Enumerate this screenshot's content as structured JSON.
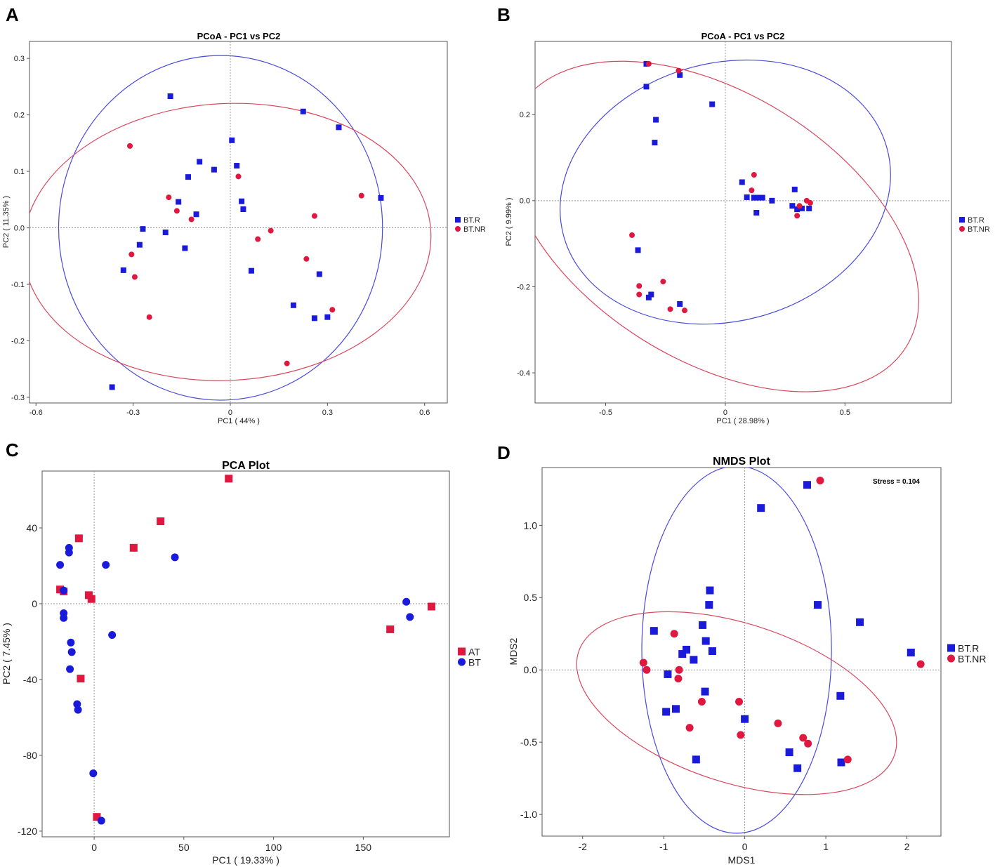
{
  "colors": {
    "blue": "#1a1adb",
    "red": "#e0173f",
    "ellipse_blue": "#4a4adf",
    "ellipse_red": "#d9485f"
  },
  "chart_data": [
    {
      "panel": "A",
      "type": "scatter",
      "title": "PCoA - PC1 vs PC2",
      "xlabel": "PC1 ( 44% )",
      "ylabel": "PC2 ( 11.35% )",
      "xlim": [
        -0.62,
        0.67
      ],
      "ylim": [
        -0.31,
        0.33
      ],
      "xticks": [
        -0.6,
        -0.3,
        0,
        0.3,
        0.6
      ],
      "xtick_labels": [
        "-0.6",
        "-0.3",
        "0",
        "0.3",
        "0.6"
      ],
      "yticks": [
        -0.3,
        -0.2,
        -0.1,
        0,
        0.1,
        0.2,
        0.3
      ],
      "ytick_labels": [
        "-0.3",
        "-0.2",
        "-0.1",
        "0.0",
        "0.1",
        "0.2",
        "0.3"
      ],
      "legend_position": "right",
      "series": [
        {
          "name": "BT.R",
          "marker": "square",
          "color": "blue",
          "points": [
            [
              -0.185,
              0.233
            ],
            [
              -0.365,
              -0.282
            ],
            [
              -0.33,
              -0.075
            ],
            [
              -0.28,
              -0.03
            ],
            [
              -0.27,
              -0.002
            ],
            [
              -0.2,
              -0.008
            ],
            [
              -0.16,
              0.046
            ],
            [
              -0.14,
              -0.036
            ],
            [
              -0.13,
              0.09
            ],
            [
              -0.105,
              0.024
            ],
            [
              -0.095,
              0.117
            ],
            [
              -0.05,
              0.103
            ],
            [
              0.005,
              0.155
            ],
            [
              0.02,
              0.11
            ],
            [
              0.035,
              0.047
            ],
            [
              0.04,
              0.033
            ],
            [
              0.065,
              -0.076
            ],
            [
              0.195,
              -0.137
            ],
            [
              0.225,
              0.206
            ],
            [
              0.26,
              -0.16
            ],
            [
              0.275,
              -0.082
            ],
            [
              0.3,
              -0.158
            ],
            [
              0.335,
              0.178
            ],
            [
              0.465,
              0.053
            ]
          ]
        },
        {
          "name": "BT.NR",
          "marker": "circle",
          "color": "red",
          "points": [
            [
              -0.31,
              0.145
            ],
            [
              -0.305,
              -0.047
            ],
            [
              -0.295,
              -0.087
            ],
            [
              -0.25,
              -0.158
            ],
            [
              -0.19,
              0.054
            ],
            [
              -0.165,
              0.03
            ],
            [
              -0.12,
              0.015
            ],
            [
              0.025,
              0.091
            ],
            [
              0.085,
              -0.02
            ],
            [
              0.125,
              -0.005
            ],
            [
              0.175,
              -0.24
            ],
            [
              0.235,
              -0.055
            ],
            [
              0.26,
              0.021
            ],
            [
              0.315,
              -0.145
            ],
            [
              0.405,
              0.057
            ]
          ]
        }
      ],
      "ellipses": [
        {
          "group": "BT.R",
          "color": "ellipse_blue",
          "cx": -0.03,
          "cy": 0.0,
          "rx": 0.5,
          "ry": 0.305,
          "angle_deg": 0
        },
        {
          "group": "BT.NR",
          "color": "ellipse_red",
          "cx": -0.01,
          "cy": -0.025,
          "rx": 0.63,
          "ry": 0.245,
          "angle_deg": -3
        }
      ]
    },
    {
      "panel": "B",
      "type": "scatter",
      "title": "PCoA - PC1 vs PC2",
      "xlabel": "PC1 ( 28.98% )",
      "ylabel": "PC2 ( 9.99% )",
      "xlim": [
        -0.795,
        0.945
      ],
      "ylim": [
        -0.47,
        0.37
      ],
      "xticks": [
        -0.5,
        0,
        0.5
      ],
      "xtick_labels": [
        "-0.5",
        "0",
        "0.5"
      ],
      "yticks": [
        -0.4,
        -0.2,
        0,
        0.2
      ],
      "ytick_labels": [
        "-0.4",
        "-0.2",
        "0.0",
        "0.2"
      ],
      "legend_position": "right",
      "series": [
        {
          "name": "BT.R",
          "marker": "square",
          "color": "blue",
          "points": [
            [
              -0.33,
              0.318
            ],
            [
              -0.33,
              0.265
            ],
            [
              -0.29,
              0.188
            ],
            [
              -0.295,
              0.135
            ],
            [
              -0.19,
              0.292
            ],
            [
              -0.055,
              0.224
            ],
            [
              -0.365,
              -0.115
            ],
            [
              -0.31,
              -0.218
            ],
            [
              -0.32,
              -0.225
            ],
            [
              -0.19,
              -0.24
            ],
            [
              0.07,
              0.043
            ],
            [
              0.09,
              0.008
            ],
            [
              0.12,
              0.007
            ],
            [
              0.13,
              0.007
            ],
            [
              0.14,
              0.007
            ],
            [
              0.155,
              0.007
            ],
            [
              0.195,
              0.0
            ],
            [
              0.13,
              -0.028
            ],
            [
              0.28,
              -0.012
            ],
            [
              0.29,
              0.026
            ],
            [
              0.3,
              -0.02
            ],
            [
              0.32,
              -0.018
            ],
            [
              0.35,
              -0.018
            ]
          ]
        },
        {
          "name": "BT.NR",
          "marker": "circle",
          "color": "red",
          "points": [
            [
              -0.32,
              0.318
            ],
            [
              -0.195,
              0.302
            ],
            [
              -0.39,
              -0.08
            ],
            [
              -0.36,
              -0.198
            ],
            [
              -0.36,
              -0.218
            ],
            [
              -0.26,
              -0.188
            ],
            [
              -0.23,
              -0.252
            ],
            [
              -0.17,
              -0.255
            ],
            [
              0.11,
              0.024
            ],
            [
              0.12,
              0.06
            ],
            [
              0.31,
              -0.012
            ],
            [
              0.34,
              0.0
            ],
            [
              0.355,
              -0.005
            ],
            [
              0.3,
              -0.035
            ]
          ]
        }
      ],
      "ellipses": [
        {
          "group": "BT.R",
          "color": "ellipse_blue",
          "cx": 0.0,
          "cy": 0.02,
          "rx": 0.7,
          "ry": 0.3,
          "angle_deg": -15
        },
        {
          "group": "BT.NR",
          "color": "ellipse_red",
          "cx": -0.05,
          "cy": -0.06,
          "rx": 0.95,
          "ry": 0.31,
          "angle_deg": 32
        }
      ]
    },
    {
      "panel": "C",
      "type": "scatter",
      "title": "PCA Plot",
      "xlabel": "PC1 ( 19.33% )",
      "ylabel": "PC2 ( 7.45% )",
      "xlim": [
        -29,
        198
      ],
      "ylim": [
        -123,
        70
      ],
      "xticks": [
        0,
        50,
        100,
        150
      ],
      "xtick_labels": [
        "0",
        "50",
        "100",
        "150"
      ],
      "yticks": [
        -120,
        -80,
        -40,
        0,
        40
      ],
      "ytick_labels": [
        "-120",
        "-80",
        "-40",
        "0",
        "40"
      ],
      "legend_position": "right",
      "series": [
        {
          "name": "AT",
          "marker": "square",
          "color": "red",
          "points": [
            [
              75,
              66
            ],
            [
              37,
              43.5
            ],
            [
              22,
              29.5
            ],
            [
              -8.5,
              34.5
            ],
            [
              -19,
              7.5
            ],
            [
              -17,
              6.5
            ],
            [
              -3,
              4.5
            ],
            [
              -1.5,
              2.5
            ],
            [
              -7.5,
              -39.5
            ],
            [
              1.5,
              -112.5
            ],
            [
              165,
              -13.5
            ],
            [
              188,
              -1.5
            ]
          ]
        },
        {
          "name": "BT",
          "marker": "circle",
          "color": "blue",
          "points": [
            [
              -19,
              20.5
            ],
            [
              -14,
              29.5
            ],
            [
              -14,
              27
            ],
            [
              -17,
              7
            ],
            [
              -17,
              -5
            ],
            [
              -17,
              -7.5
            ],
            [
              -13,
              -20.5
            ],
            [
              -12.5,
              -25.5
            ],
            [
              -13.5,
              -34.5
            ],
            [
              -9.5,
              -53
            ],
            [
              -9,
              -56
            ],
            [
              6.5,
              20.5
            ],
            [
              10,
              -16.5
            ],
            [
              45,
              24.5
            ],
            [
              -0.5,
              -89.5
            ],
            [
              4,
              -114.5
            ],
            [
              174,
              1
            ],
            [
              176,
              -7
            ]
          ]
        }
      ]
    },
    {
      "panel": "D",
      "type": "scatter",
      "title": "NMDS Plot",
      "xlabel": "MDS1",
      "ylabel": "MDS2",
      "annotation": "Stress = 0.104",
      "xlim": [
        -2.5,
        2.42
      ],
      "ylim": [
        -1.15,
        1.4
      ],
      "xticks": [
        -2,
        -1,
        0,
        1,
        2
      ],
      "xtick_labels": [
        "-2",
        "-1",
        "0",
        "1",
        "2"
      ],
      "yticks": [
        -1.0,
        -0.5,
        0.0,
        0.5,
        1.0
      ],
      "ytick_labels": [
        "-1.0",
        "-0.5",
        "0.0",
        "0.5",
        "1.0"
      ],
      "legend_position": "right",
      "series": [
        {
          "name": "BT.R",
          "marker": "square",
          "color": "blue",
          "points": [
            [
              0.2,
              1.12
            ],
            [
              0.77,
              1.28
            ],
            [
              0.9,
              0.45
            ],
            [
              1.42,
              0.33
            ],
            [
              2.05,
              0.12
            ],
            [
              -1.12,
              0.27
            ],
            [
              -0.95,
              -0.03
            ],
            [
              -0.97,
              -0.29
            ],
            [
              -0.85,
              -0.27
            ],
            [
              -0.77,
              0.11
            ],
            [
              -0.72,
              0.14
            ],
            [
              -0.63,
              0.07
            ],
            [
              -0.52,
              0.31
            ],
            [
              -0.48,
              0.2
            ],
            [
              -0.43,
              0.55
            ],
            [
              -0.44,
              0.45
            ],
            [
              -0.4,
              0.13
            ],
            [
              -0.49,
              -0.15
            ],
            [
              0.0,
              -0.34
            ],
            [
              0.55,
              -0.57
            ],
            [
              0.65,
              -0.68
            ],
            [
              1.18,
              -0.18
            ],
            [
              1.19,
              -0.64
            ],
            [
              -0.6,
              -0.62
            ]
          ]
        },
        {
          "name": "BT.NR",
          "marker": "circle",
          "color": "red",
          "points": [
            [
              -1.25,
              0.05
            ],
            [
              -1.21,
              0.0
            ],
            [
              -0.87,
              0.25
            ],
            [
              -0.81,
              0.0
            ],
            [
              -0.82,
              -0.06
            ],
            [
              -0.68,
              -0.4
            ],
            [
              -0.53,
              -0.22
            ],
            [
              -0.07,
              -0.22
            ],
            [
              -0.05,
              -0.45
            ],
            [
              0.41,
              -0.37
            ],
            [
              0.72,
              -0.47
            ],
            [
              0.78,
              -0.51
            ],
            [
              1.27,
              -0.62
            ],
            [
              0.93,
              1.31
            ],
            [
              2.17,
              0.04
            ]
          ]
        }
      ],
      "ellipses": [
        {
          "group": "BT.R",
          "color": "ellipse_blue",
          "cx": -0.1,
          "cy": 0.14,
          "rx": 1.17,
          "ry": 1.27,
          "angle_deg": 0
        },
        {
          "group": "BT.NR",
          "color": "ellipse_red",
          "cx": -0.1,
          "cy": -0.23,
          "rx": 2.05,
          "ry": 0.55,
          "angle_deg": 18
        }
      ]
    }
  ]
}
